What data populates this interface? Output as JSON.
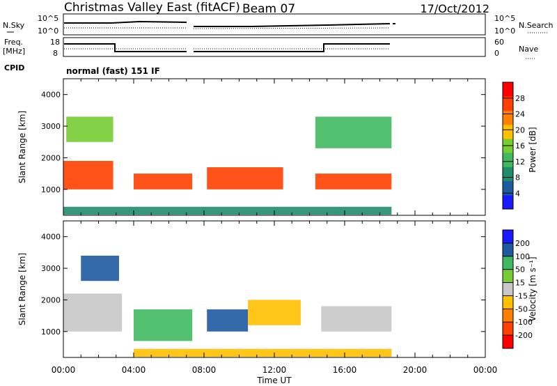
{
  "header": {
    "station": "Christmas Valley East (fitACF)",
    "beam": "Beam 07",
    "date": "17/Oct/2012"
  },
  "strips": {
    "nsky_label": "N.Sky",
    "nsearch_label": "N.Search",
    "nsky_ticks": [
      "10^5",
      "10^0"
    ],
    "nsearch_ticks": [
      "10^5",
      "10^0"
    ],
    "freq_label_line1": "Freq.",
    "freq_label_line2": "[MHz]",
    "freq_ticks": [
      "18",
      "8"
    ],
    "nave_label": "Nave",
    "nave_ticks": [
      "60",
      "0"
    ],
    "cpid_label": "CPID",
    "cpid_value": "normal (fast) 151 IF"
  },
  "panels": {
    "ylabel": "Slant Range [km]",
    "yticks": [
      "4000",
      "3000",
      "2000",
      "1000"
    ],
    "xlabel": "Time UT",
    "xticks": [
      "00:00",
      "04:00",
      "08:00",
      "12:00",
      "16:00",
      "20:00",
      "00:00"
    ]
  },
  "colorbars": {
    "power_label": "Power [dB]",
    "power_ticks": [
      "28",
      "24",
      "20",
      "16",
      "12",
      "8",
      "4"
    ],
    "velocity_label": "Velocity [m s⁻¹]",
    "velocity_ticks": [
      "200",
      "100",
      "50",
      "15",
      "-15",
      "-50",
      "-100",
      "-200"
    ]
  },
  "chart_data": [
    {
      "type": "heatmap",
      "title": "Power",
      "xlabel": "Time UT",
      "ylabel": "Slant Range [km]",
      "xlim": [
        "00:00",
        "24:00"
      ],
      "ylim": [
        180,
        4500
      ],
      "colorbar": {
        "label": "Power [dB]",
        "range": [
          0,
          30
        ],
        "colors": [
          "#1a1aff",
          "#1e5aa0",
          "#1f8c6e",
          "#40b860",
          "#77cc33",
          "#ffc000",
          "#ff8000",
          "#ff4000",
          "#ff0000"
        ]
      },
      "bands": [
        {
          "t_start": "00:00",
          "t_end": "02:50",
          "range_low_km": 1000,
          "range_high_km": 1900,
          "power_db": 24
        },
        {
          "t_start": "00:10",
          "t_end": "02:50",
          "range_low_km": 2500,
          "range_high_km": 3300,
          "power_db": 16
        },
        {
          "t_start": "04:00",
          "t_end": "07:20",
          "range_low_km": 1000,
          "range_high_km": 1500,
          "power_db": 24
        },
        {
          "t_start": "08:10",
          "t_end": "12:30",
          "range_low_km": 1000,
          "range_high_km": 1700,
          "power_db": 24
        },
        {
          "t_start": "14:20",
          "t_end": "18:40",
          "range_low_km": 1000,
          "range_high_km": 1500,
          "power_db": 26
        },
        {
          "t_start": "14:20",
          "t_end": "18:40",
          "range_low_km": 2300,
          "range_high_km": 3300,
          "power_db": 10
        },
        {
          "t_start": "00:00",
          "t_end": "18:40",
          "range_low_km": 200,
          "range_high_km": 450,
          "power_db": 8
        }
      ]
    },
    {
      "type": "heatmap",
      "title": "Velocity",
      "xlabel": "Time UT",
      "ylabel": "Slant Range [km]",
      "xlim": [
        "00:00",
        "24:00"
      ],
      "ylim": [
        180,
        4500
      ],
      "colorbar": {
        "label": "Velocity [m s⁻¹]",
        "range": [
          -250,
          250
        ],
        "colors": [
          "#ff0000",
          "#ff4000",
          "#ff8000",
          "#ffc000",
          "#c8c8c8",
          "#77cc33",
          "#40b860",
          "#1e5aa0",
          "#1a1aff"
        ]
      },
      "bands": [
        {
          "t_start": "00:00",
          "t_end": "03:20",
          "range_low_km": 1000,
          "range_high_km": 2200,
          "velocity_ms": 0
        },
        {
          "t_start": "01:00",
          "t_end": "03:10",
          "range_low_km": 2600,
          "range_high_km": 3400,
          "velocity_ms": 150
        },
        {
          "t_start": "04:00",
          "t_end": "07:20",
          "range_low_km": 700,
          "range_high_km": 1700,
          "velocity_ms": 120
        },
        {
          "t_start": "08:10",
          "t_end": "10:30",
          "range_low_km": 1000,
          "range_high_km": 1700,
          "velocity_ms": 150
        },
        {
          "t_start": "10:30",
          "t_end": "13:30",
          "range_low_km": 1200,
          "range_high_km": 2000,
          "velocity_ms": -40
        },
        {
          "t_start": "14:40",
          "t_end": "18:40",
          "range_low_km": 1000,
          "range_high_km": 1800,
          "velocity_ms": 0
        },
        {
          "t_start": "04:00",
          "t_end": "18:40",
          "range_low_km": 200,
          "range_high_km": 450,
          "velocity_ms": -30
        }
      ]
    }
  ]
}
